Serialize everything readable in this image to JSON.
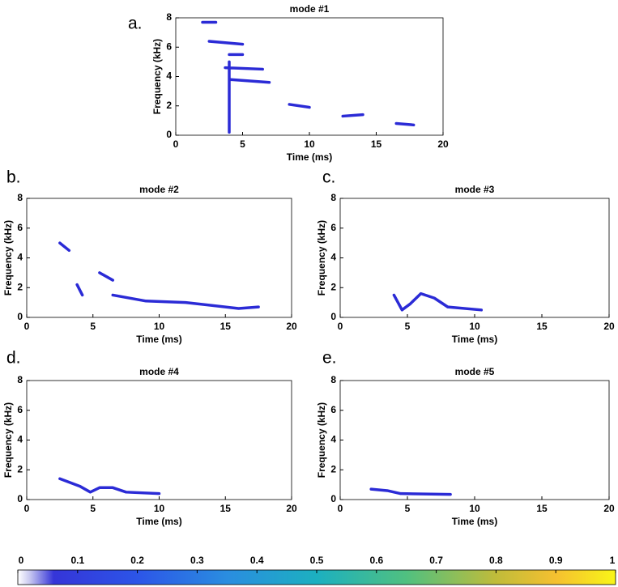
{
  "chart_data": [
    {
      "type": "spectrogram",
      "panel_label": "a.",
      "title": "mode #1",
      "xlabel": "Time (ms)",
      "ylabel": "Frequency (kHz)",
      "xlim": [
        0,
        20
      ],
      "ylim": [
        0,
        8
      ],
      "xticks": [
        0,
        5,
        10,
        15,
        20
      ],
      "yticks": [
        0,
        2,
        4,
        6,
        8
      ],
      "series": [
        {
          "color": "#2b2bd6",
          "x": [
            2,
            3,
            null,
            2.5,
            5,
            null,
            4,
            5,
            null,
            3.7,
            6.5,
            null,
            4,
            7,
            null,
            8.5,
            10,
            null,
            12.5,
            14,
            null,
            16.5,
            17.8,
            null,
            4,
            4
          ],
          "values": [
            7.7,
            7.7,
            null,
            6.4,
            6.2,
            null,
            5.5,
            5.5,
            null,
            4.6,
            4.5,
            null,
            3.8,
            3.6,
            null,
            2.1,
            1.9,
            null,
            1.3,
            1.4,
            null,
            0.8,
            0.7,
            null,
            0.2,
            5
          ]
        }
      ]
    },
    {
      "type": "spectrogram",
      "panel_label": "b.",
      "title": "mode #2",
      "xlabel": "Time (ms)",
      "ylabel": "Frequency (kHz)",
      "xlim": [
        0,
        20
      ],
      "ylim": [
        0,
        8
      ],
      "xticks": [
        0,
        5,
        10,
        15,
        20
      ],
      "yticks": [
        0,
        2,
        4,
        6,
        8
      ],
      "series": [
        {
          "color": "#2b2bd6",
          "x": [
            2.5,
            3.2,
            null,
            3.8,
            4.2,
            null,
            5.5,
            6.5,
            null,
            6.5,
            9,
            12,
            16,
            17.5
          ],
          "values": [
            5,
            4.5,
            null,
            2.2,
            1.5,
            null,
            3,
            2.5,
            null,
            1.5,
            1.1,
            1,
            0.6,
            0.7
          ]
        }
      ]
    },
    {
      "type": "spectrogram",
      "panel_label": "c.",
      "title": "mode #3",
      "xlabel": "Time (ms)",
      "ylabel": "Frequency (kHz)",
      "xlim": [
        0,
        20
      ],
      "ylim": [
        0,
        8
      ],
      "xticks": [
        0,
        5,
        10,
        15,
        20
      ],
      "yticks": [
        0,
        2,
        4,
        6,
        8
      ],
      "series": [
        {
          "color": "#2b2bd6",
          "x": [
            4,
            4.6,
            5.2,
            6,
            7,
            8,
            10.5
          ],
          "values": [
            1.5,
            0.5,
            0.9,
            1.6,
            1.3,
            0.7,
            0.5
          ]
        }
      ]
    },
    {
      "type": "spectrogram",
      "panel_label": "d.",
      "title": "mode #4",
      "xlabel": "Time (ms)",
      "ylabel": "Frequency (kHz)",
      "xlim": [
        0,
        20
      ],
      "ylim": [
        0,
        8
      ],
      "xticks": [
        0,
        5,
        10,
        15,
        20
      ],
      "yticks": [
        0,
        2,
        4,
        6,
        8
      ],
      "series": [
        {
          "color": "#2b2bd6",
          "x": [
            2.5,
            4,
            4.8,
            5.5,
            6.5,
            7.5,
            10
          ],
          "values": [
            1.4,
            0.9,
            0.5,
            0.8,
            0.8,
            0.5,
            0.4
          ]
        }
      ]
    },
    {
      "type": "spectrogram",
      "panel_label": "e.",
      "title": "mode #5",
      "xlabel": "Time (ms)",
      "ylabel": "Frequency (kHz)",
      "xlim": [
        0,
        20
      ],
      "ylim": [
        0,
        8
      ],
      "xticks": [
        0,
        5,
        10,
        15,
        20
      ],
      "yticks": [
        0,
        2,
        4,
        6,
        8
      ],
      "series": [
        {
          "color": "#2b2bd6",
          "x": [
            2.3,
            3.5,
            4.5,
            8.2
          ],
          "values": [
            0.7,
            0.6,
            0.4,
            0.35
          ]
        }
      ]
    }
  ],
  "colorbar": {
    "lim": [
      0,
      1
    ],
    "ticks": [
      0,
      0.1,
      0.2,
      0.3,
      0.4,
      0.5,
      0.6,
      0.7,
      0.8,
      0.9,
      1
    ]
  }
}
